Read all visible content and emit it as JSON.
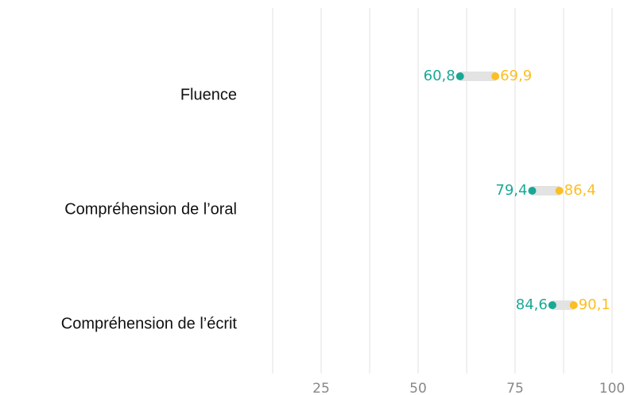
{
  "chart_data": {
    "type": "dumbbell",
    "categories": [
      "Fluence",
      "Compréhension de l’oral",
      "Compréhension de l’écrit"
    ],
    "series": [
      {
        "color": "#1aa896",
        "values": [
          60.8,
          79.4,
          84.6
        ],
        "value_labels": [
          "60,8",
          "79,4",
          "84,6"
        ]
      },
      {
        "color": "#fbbf24",
        "values": [
          69.9,
          86.4,
          90.1
        ],
        "value_labels": [
          "69,9",
          "86,4",
          "90,1"
        ]
      }
    ],
    "connector_color": "#e3e3e3",
    "xlim": [
      12.5,
      100
    ],
    "xticks": [
      25,
      50,
      75,
      100
    ],
    "x_minor_ticks": [
      12.5,
      37.5,
      62.5,
      87.5
    ],
    "grid": true
  }
}
